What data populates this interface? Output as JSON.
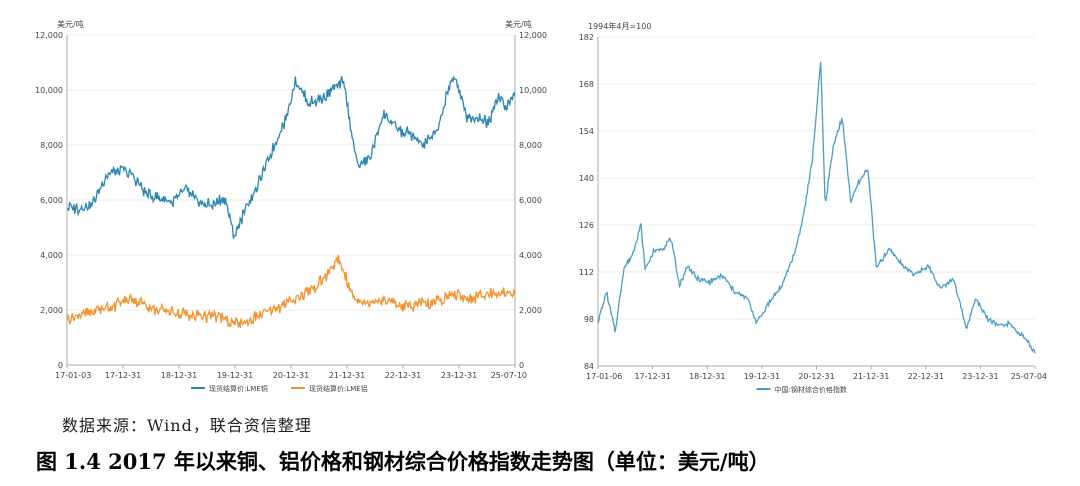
{
  "source_note": "数据来源：Wind，联合资信整理",
  "figure_caption": "图 1.4    2017 年以来铜、铝价格和钢材综合价格指数走势图（单位：美元/吨）",
  "colors": {
    "copper": "#2a86b0",
    "aluminum": "#f29430",
    "steel": "#4a9ec6",
    "axis": "#999999",
    "grid": "#e6e6e6",
    "text": "#444444"
  },
  "chart_data": [
    {
      "type": "line",
      "title": "",
      "ylabel_left": "美元/吨",
      "ylabel_right": "美元/吨",
      "ylim": [
        0,
        12000
      ],
      "yticks": [
        "0",
        "2,000",
        "4,000",
        "6,000",
        "8,000",
        "10,000",
        "12,000"
      ],
      "xticks": [
        "17-01-03",
        "17-12-31",
        "18-12-31",
        "19-12-31",
        "20-12-31",
        "21-12-31",
        "22-12-31",
        "23-12-31",
        "25-07-10"
      ],
      "grid": true,
      "legend_position": "bottom",
      "series": [
        {
          "name": "现货结算价:LME铜",
          "color": "#2a86b0",
          "x": [
            "2017-01",
            "2017-04",
            "2017-07",
            "2017-10",
            "2018-01",
            "2018-04",
            "2018-07",
            "2018-10",
            "2019-01",
            "2019-04",
            "2019-07",
            "2019-10",
            "2020-01",
            "2020-03",
            "2020-06",
            "2020-09",
            "2020-12",
            "2021-03",
            "2021-05",
            "2021-08",
            "2021-11",
            "2022-02",
            "2022-04",
            "2022-07",
            "2022-10",
            "2023-01",
            "2023-04",
            "2023-07",
            "2023-10",
            "2024-01",
            "2024-05",
            "2024-08",
            "2024-11",
            "2025-01",
            "2025-03",
            "2025-05",
            "2025-07"
          ],
          "values": [
            5700,
            5700,
            5900,
            6900,
            7100,
            6900,
            6200,
            6100,
            5900,
            6400,
            5900,
            5800,
            6100,
            4700,
            5800,
            6700,
            7900,
            9000,
            10400,
            9500,
            9700,
            10100,
            10300,
            7300,
            7500,
            9100,
            8600,
            8400,
            8000,
            8400,
            10600,
            9000,
            9000,
            8800,
            9800,
            9400,
            9900
          ]
        },
        {
          "name": "现货结算价:LME铝",
          "color": "#f29430",
          "x": [
            "2017-01",
            "2017-06",
            "2017-10",
            "2018-04",
            "2018-08",
            "2018-12",
            "2019-06",
            "2019-12",
            "2020-04",
            "2020-08",
            "2020-12",
            "2021-05",
            "2021-10",
            "2022-03",
            "2022-06",
            "2022-09",
            "2022-12",
            "2023-06",
            "2023-12",
            "2024-05",
            "2024-09",
            "2024-12",
            "2025-03",
            "2025-07"
          ],
          "values": [
            1700,
            1900,
            2100,
            2400,
            2050,
            1950,
            1800,
            1750,
            1450,
            1750,
            2000,
            2400,
            2900,
            3800,
            2500,
            2250,
            2400,
            2150,
            2250,
            2600,
            2400,
            2550,
            2650,
            2600
          ]
        }
      ]
    },
    {
      "type": "line",
      "title": "",
      "ylabel_left": "1994年4月=100",
      "ylim": [
        84,
        182
      ],
      "yticks": [
        "84",
        "98",
        "112",
        "126",
        "140",
        "154",
        "168",
        "182"
      ],
      "xticks": [
        "17-01-06",
        "17-12-31",
        "18-12-31",
        "19-12-31",
        "20-12-31",
        "21-12-31",
        "22-12-31",
        "23-12-31",
        "25-07-04"
      ],
      "grid": true,
      "legend_position": "bottom",
      "series": [
        {
          "name": "中国:钢材综合价格指数",
          "color": "#4a9ec6",
          "x": [
            "2017-01",
            "2017-03",
            "2017-05",
            "2017-07",
            "2017-09",
            "2017-11",
            "2017-12",
            "2018-02",
            "2018-04",
            "2018-06",
            "2018-08",
            "2018-10",
            "2018-12",
            "2019-03",
            "2019-06",
            "2019-09",
            "2019-12",
            "2020-02",
            "2020-05",
            "2020-08",
            "2020-11",
            "2021-01",
            "2021-03",
            "2021-05",
            "2021-06",
            "2021-08",
            "2021-10",
            "2021-12",
            "2022-02",
            "2022-04",
            "2022-06",
            "2022-09",
            "2022-12",
            "2023-03",
            "2023-06",
            "2023-09",
            "2023-12",
            "2024-03",
            "2024-05",
            "2024-08",
            "2024-11",
            "2025-01",
            "2025-03",
            "2025-05",
            "2025-07"
          ],
          "values": [
            97,
            106,
            94,
            113,
            117,
            126,
            113,
            118,
            119,
            122,
            108,
            114,
            110,
            109,
            111,
            106,
            104,
            97,
            103,
            108,
            118,
            129,
            145,
            175,
            132,
            150,
            158,
            133,
            139,
            143,
            113,
            119,
            114,
            111,
            114,
            107,
            110,
            95,
            104,
            98,
            96,
            97,
            94,
            92,
            88
          ]
        }
      ]
    }
  ]
}
